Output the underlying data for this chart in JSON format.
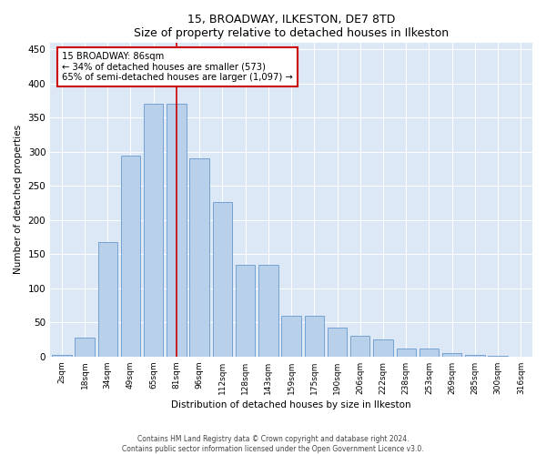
{
  "title1": "15, BROADWAY, ILKESTON, DE7 8TD",
  "title2": "Size of property relative to detached houses in Ilkeston",
  "xlabel": "Distribution of detached houses by size in Ilkeston",
  "ylabel": "Number of detached properties",
  "bar_labels": [
    "2sqm",
    "18sqm",
    "34sqm",
    "49sqm",
    "65sqm",
    "81sqm",
    "96sqm",
    "112sqm",
    "128sqm",
    "143sqm",
    "159sqm",
    "175sqm",
    "190sqm",
    "206sqm",
    "222sqm",
    "238sqm",
    "253sqm",
    "269sqm",
    "285sqm",
    "300sqm",
    "316sqm"
  ],
  "bar_heights": [
    2,
    28,
    168,
    295,
    370,
    370,
    290,
    226,
    135,
    135,
    60,
    60,
    42,
    30,
    25,
    12,
    12,
    5,
    2,
    1,
    0
  ],
  "bar_color": "#b8d0ea",
  "bar_edge_color": "#6699cc",
  "vline_x_index": 5,
  "vline_color": "#cc0000",
  "annotation_text": "15 BROADWAY: 86sqm\n← 34% of detached houses are smaller (573)\n65% of semi-detached houses are larger (1,097) →",
  "annotation_box_color": "#ffffff",
  "annotation_box_edge": "#cc0000",
  "ylim": [
    0,
    460
  ],
  "yticks": [
    0,
    50,
    100,
    150,
    200,
    250,
    300,
    350,
    400,
    450
  ],
  "footer1": "Contains HM Land Registry data © Crown copyright and database right 2024.",
  "footer2": "Contains public sector information licensed under the Open Government Licence v3.0.",
  "bg_color": "#dce8f5",
  "fig_bg_color": "#ffffff"
}
